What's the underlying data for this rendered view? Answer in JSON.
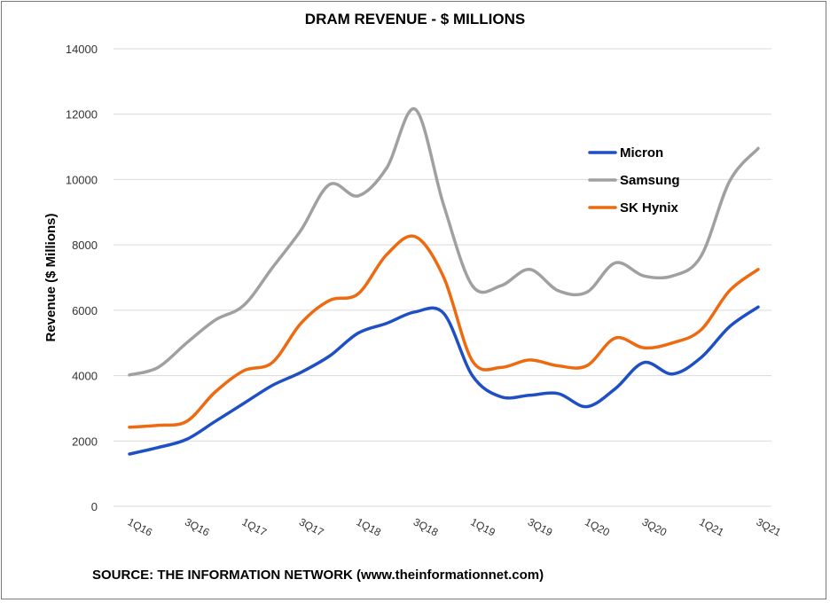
{
  "chart_data": {
    "type": "line",
    "title": "DRAM REVENUE - $ MILLIONS",
    "ylabel": "Revenue ($ Millions)",
    "xlabel": "",
    "ylim": [
      0,
      14000
    ],
    "yticks": [
      0,
      2000,
      4000,
      6000,
      8000,
      10000,
      12000,
      14000
    ],
    "grid": true,
    "legend_position": "right",
    "x": [
      "1Q16",
      "2Q16",
      "3Q16",
      "4Q16",
      "1Q17",
      "2Q17",
      "3Q17",
      "4Q17",
      "1Q18",
      "2Q18",
      "3Q18",
      "4Q18",
      "1Q19",
      "2Q19",
      "3Q19",
      "4Q19",
      "1Q20",
      "2Q20",
      "3Q20",
      "4Q20",
      "1Q21",
      "2Q21",
      "3Q21"
    ],
    "x_tick_labels": [
      "1Q16",
      "3Q16",
      "1Q17",
      "3Q17",
      "1Q18",
      "3Q18",
      "1Q19",
      "3Q19",
      "1Q20",
      "3Q20",
      "1Q21",
      "3Q21"
    ],
    "series": [
      {
        "name": "Micron",
        "color": "#1f4fc4",
        "values": [
          1600,
          1800,
          2050,
          2600,
          3150,
          3700,
          4100,
          4600,
          5300,
          5600,
          5950,
          5900,
          4000,
          3350,
          3400,
          3450,
          3050,
          3600,
          4400,
          4050,
          4550,
          5500,
          6100
        ]
      },
      {
        "name": "Samsung",
        "color": "#a0a0a0",
        "values": [
          4020,
          4250,
          5000,
          5700,
          6150,
          7300,
          8450,
          9850,
          9500,
          10350,
          12150,
          9200,
          6750,
          6750,
          7250,
          6600,
          6550,
          7450,
          7050,
          7050,
          7650,
          9950,
          10950
        ]
      },
      {
        "name": "SK Hynix",
        "color": "#ee6a10",
        "values": [
          2420,
          2480,
          2600,
          3500,
          4150,
          4400,
          5600,
          6300,
          6500,
          7700,
          8250,
          7000,
          4450,
          4250,
          4480,
          4300,
          4300,
          5150,
          4850,
          5000,
          5400,
          6600,
          7250
        ]
      }
    ],
    "source": "SOURCE: THE INFORMATION NETWORK (www.theinformationnet.com)"
  }
}
